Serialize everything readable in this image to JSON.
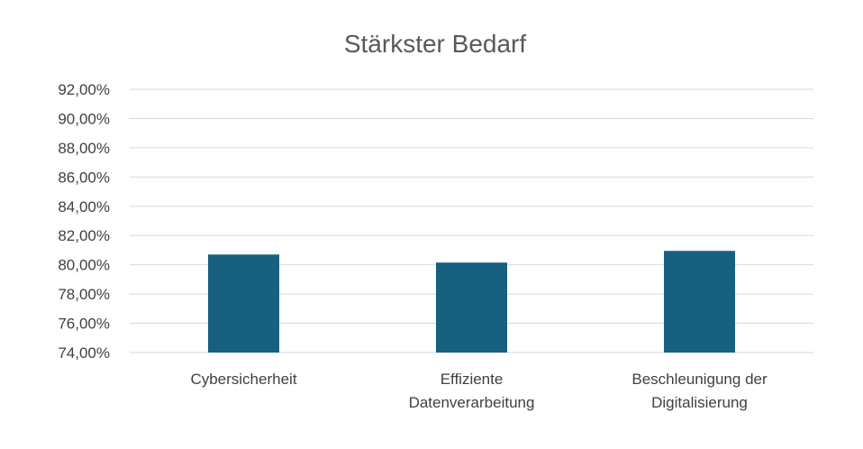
{
  "chart_data": {
    "type": "bar",
    "title": "Stärkster Bedarf",
    "xlabel": "",
    "ylabel": "",
    "categories": [
      [
        "Cybersicherheit"
      ],
      [
        "Effiziente",
        "Datenverarbeitung"
      ],
      [
        "Beschleunigung der",
        "Digitalisierung"
      ]
    ],
    "values": [
      80.7,
      80.15,
      80.95
    ],
    "ylim": [
      74,
      92
    ],
    "ytick_step": 2,
    "ytick_labels": [
      "74,00%",
      "76,00%",
      "78,00%",
      "80,00%",
      "82,00%",
      "84,00%",
      "86,00%",
      "88,00%",
      "90,00%",
      "92,00%"
    ],
    "grid": true,
    "legend": "none",
    "bar_color": "#17607f"
  }
}
